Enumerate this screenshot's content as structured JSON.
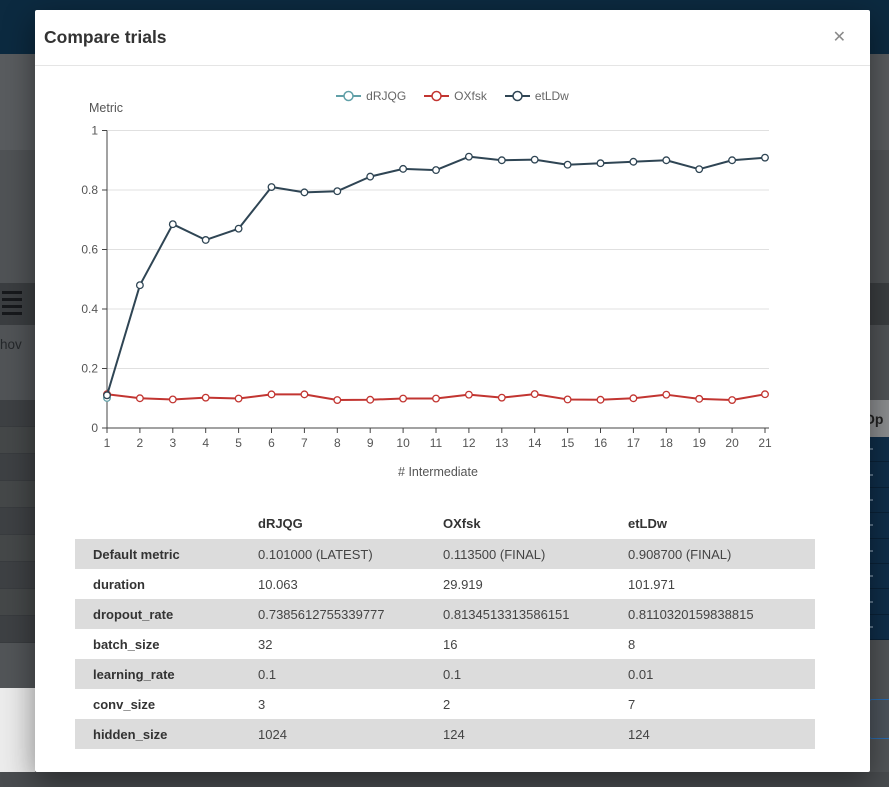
{
  "modal": {
    "title": "Compare trials",
    "close_glyph": "✕"
  },
  "chart_data": {
    "type": "line",
    "title": "",
    "ylabel": "Metric",
    "xlabel": "# Intermediate",
    "ylim": [
      0,
      1
    ],
    "yticks": [
      0,
      0.2,
      0.4,
      0.6,
      0.8,
      1
    ],
    "ytick_labels": [
      "0",
      "0.2",
      "0.4",
      "0.6",
      "0.8",
      "1"
    ],
    "x": [
      1,
      2,
      3,
      4,
      5,
      6,
      7,
      8,
      9,
      10,
      11,
      12,
      13,
      14,
      15,
      16,
      17,
      18,
      19,
      20,
      21
    ],
    "grid": true,
    "legend_position": "top-center",
    "series": [
      {
        "name": "dRJQG",
        "color": "#61a0a8",
        "x": [
          1
        ],
        "values": [
          0.101
        ]
      },
      {
        "name": "OXfsk",
        "color": "#c23531",
        "values": [
          0.1135,
          0.1,
          0.096,
          0.102,
          0.099,
          0.113,
          0.113,
          0.094,
          0.095,
          0.099,
          0.099,
          0.112,
          0.102,
          0.114,
          0.096,
          0.095,
          0.1,
          0.112,
          0.098,
          0.094,
          0.1135
        ]
      },
      {
        "name": "etLDw",
        "color": "#2f4554",
        "values": [
          0.11,
          0.48,
          0.685,
          0.632,
          0.67,
          0.81,
          0.792,
          0.796,
          0.845,
          0.871,
          0.867,
          0.912,
          0.9,
          0.902,
          0.885,
          0.89,
          0.895,
          0.9,
          0.87,
          0.9,
          0.9087
        ]
      }
    ]
  },
  "table": {
    "columns": [
      "",
      "dRJQG",
      "OXfsk",
      "etLDw"
    ],
    "rows": [
      {
        "label": "Default metric",
        "values": [
          "0.101000 (LATEST)",
          "0.113500 (FINAL)",
          "0.908700 (FINAL)"
        ]
      },
      {
        "label": "duration",
        "values": [
          "10.063",
          "29.919",
          "101.971"
        ]
      },
      {
        "label": "dropout_rate",
        "values": [
          "0.7385612755339777",
          "0.8134513313586151",
          "0.8110320159838815"
        ]
      },
      {
        "label": "batch_size",
        "values": [
          "32",
          "16",
          "8"
        ]
      },
      {
        "label": "learning_rate",
        "values": [
          "0.1",
          "0.1",
          "0.01"
        ]
      },
      {
        "label": "conv_size",
        "values": [
          "3",
          "2",
          "7"
        ]
      },
      {
        "label": "hidden_size",
        "values": [
          "1024",
          "124",
          "124"
        ]
      }
    ]
  },
  "backdrop": {
    "left_clipped_text": "hov",
    "right_clipped_text": "Op"
  },
  "colors": {
    "header_navy": "#0c2a40",
    "table_stripe": "#dcdcdc"
  }
}
